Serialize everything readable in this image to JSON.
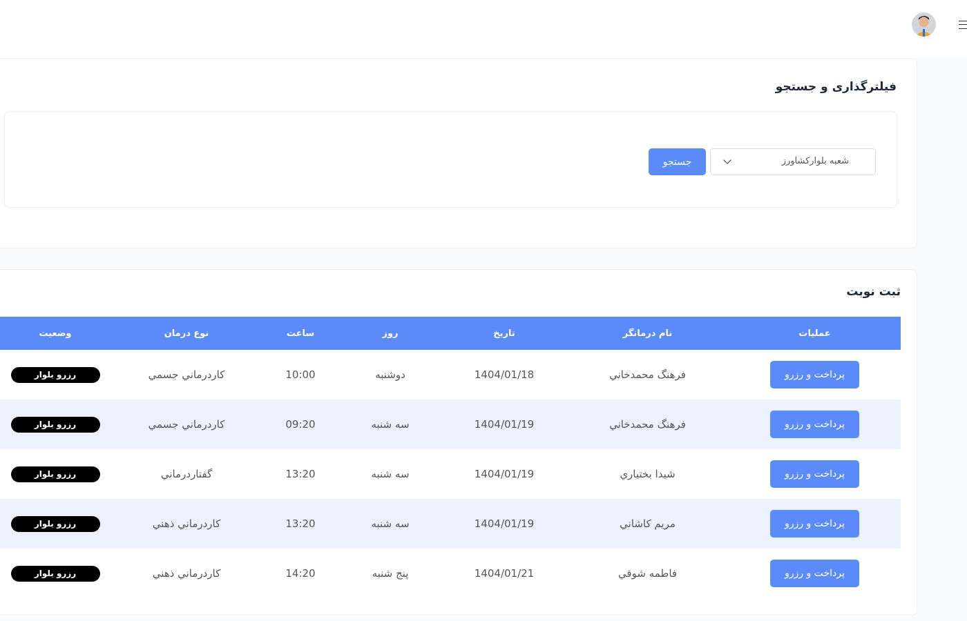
{
  "header": {
    "avatar_icon": "user-avatar",
    "menu_icon": "hamburger-icon"
  },
  "filter": {
    "title": "فیلترگذاری و جستجو",
    "branch_select": "شعبه بلوارکشاورز",
    "search_label": "جستجو"
  },
  "booking": {
    "title": "ثبت نوبت",
    "columns": [
      "عملیات",
      "نام درمانگر",
      "تاریخ",
      "روز",
      "ساعت",
      "نوع درمان",
      "وضعیت"
    ],
    "rows": [
      {
        "action": "پرداخت و رزرو",
        "therapist": "فرهنگ محمدخاني",
        "date": "1404/01/18",
        "day": "دوشنبه",
        "time": "10:00",
        "type": "كاردرماني جسمي",
        "status": "رزرو بلوار"
      },
      {
        "action": "پرداخت و رزرو",
        "therapist": "فرهنگ محمدخاني",
        "date": "1404/01/19",
        "day": "سه شنبه",
        "time": "09:20",
        "type": "كاردرماني جسمي",
        "status": "رزرو بلوار"
      },
      {
        "action": "پرداخت و رزرو",
        "therapist": "شيدا بختياري",
        "date": "1404/01/19",
        "day": "سه شنبه",
        "time": "13:20",
        "type": "گفتاردرماني",
        "status": "رزرو بلوار"
      },
      {
        "action": "پرداخت و رزرو",
        "therapist": "مريم كاشاني",
        "date": "1404/01/19",
        "day": "سه شنبه",
        "time": "13:20",
        "type": "كاردرماني ذهني",
        "status": "رزرو بلوار"
      },
      {
        "action": "پرداخت و رزرو",
        "therapist": "فاطمه شوقي",
        "date": "1404/01/21",
        "day": "پنج شنبه",
        "time": "14:20",
        "type": "كاردرماني ذهني",
        "status": "رزرو بلوار"
      }
    ]
  },
  "colors": {
    "accent": "#5b8af9",
    "row_alt": "#ebf2fe",
    "badge": "#000000"
  }
}
